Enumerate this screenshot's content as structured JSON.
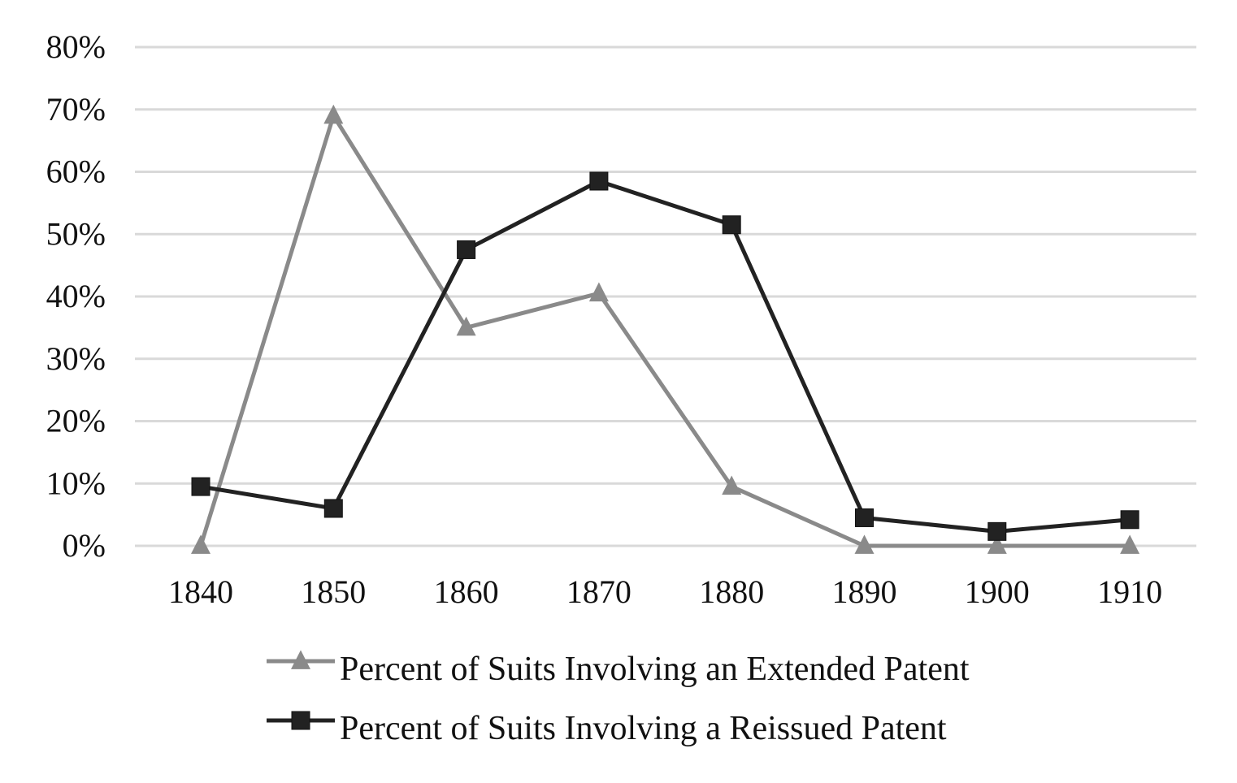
{
  "chart_data": {
    "type": "line",
    "title": "",
    "xlabel": "",
    "ylabel": "",
    "categories": [
      "1840",
      "1850",
      "1860",
      "1870",
      "1880",
      "1890",
      "1900",
      "1910"
    ],
    "y_ticks": [
      "0%",
      "10%",
      "20%",
      "30%",
      "40%",
      "50%",
      "60%",
      "70%",
      "80%"
    ],
    "ylim": [
      0,
      80
    ],
    "y_unit": "percent",
    "grid": "horizontal",
    "legend_position": "bottom",
    "series": [
      {
        "name": "Percent of Suits Involving an Extended Patent",
        "values": [
          0,
          69,
          35,
          40.5,
          9.5,
          0,
          0,
          0
        ],
        "color": "#8a8a8a",
        "marker": "triangle"
      },
      {
        "name": "Percent of Suits Involving a Reissued Patent",
        "values": [
          9.5,
          6,
          47.5,
          58.5,
          51.5,
          4.5,
          2.3,
          4.2
        ],
        "color": "#222222",
        "marker": "square"
      }
    ]
  }
}
